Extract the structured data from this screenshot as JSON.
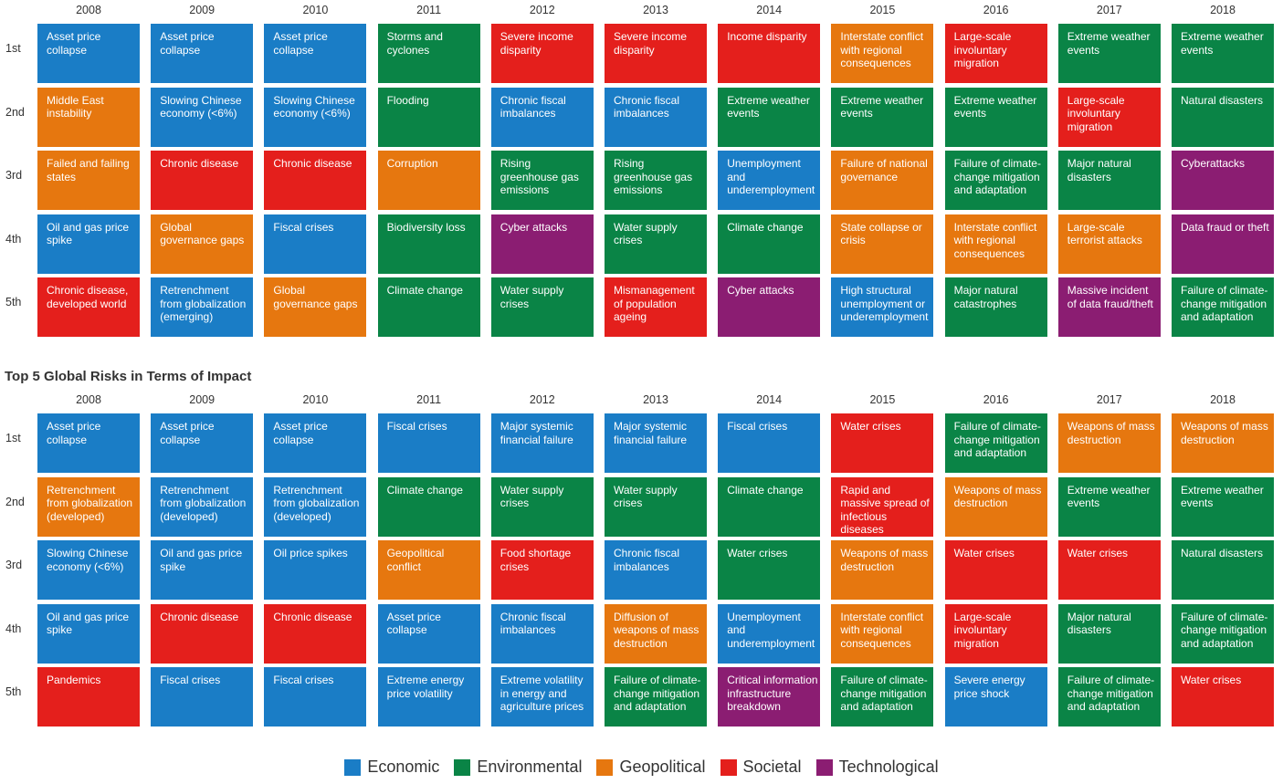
{
  "colors": {
    "Economic": "#1a7dc6",
    "Environmental": "#0a8446",
    "Geopolitical": "#e6770f",
    "Societal": "#e41f1c",
    "Technological": "#8b1d72"
  },
  "years": [
    "2008",
    "2009",
    "2010",
    "2011",
    "2012",
    "2013",
    "2014",
    "2015",
    "2016",
    "2017",
    "2018"
  ],
  "ranks": [
    "1st",
    "2nd",
    "3rd",
    "4th",
    "5th"
  ],
  "likelihood": {
    "cells": [
      [
        {
          "text": "Asset price collapse",
          "cat": "Economic"
        },
        {
          "text": "Middle East instability",
          "cat": "Geopolitical"
        },
        {
          "text": "Failed and failing states",
          "cat": "Geopolitical"
        },
        {
          "text": "Oil and gas price spike",
          "cat": "Economic"
        },
        {
          "text": "Chronic disease, developed world",
          "cat": "Societal"
        }
      ],
      [
        {
          "text": "Asset price collapse",
          "cat": "Economic"
        },
        {
          "text": "Slowing Chinese economy (<6%)",
          "cat": "Economic"
        },
        {
          "text": "Chronic disease",
          "cat": "Societal"
        },
        {
          "text": "Global governance gaps",
          "cat": "Geopolitical"
        },
        {
          "text": "Retrenchment from globalization (emerging)",
          "cat": "Economic"
        }
      ],
      [
        {
          "text": "Asset price collapse",
          "cat": "Economic"
        },
        {
          "text": "Slowing Chinese economy (<6%)",
          "cat": "Economic"
        },
        {
          "text": "Chronic disease",
          "cat": "Societal"
        },
        {
          "text": "Fiscal crises",
          "cat": "Economic"
        },
        {
          "text": "Global governance gaps",
          "cat": "Geopolitical"
        }
      ],
      [
        {
          "text": "Storms and cyclones",
          "cat": "Environmental"
        },
        {
          "text": "Flooding",
          "cat": "Environmental"
        },
        {
          "text": "Corruption",
          "cat": "Geopolitical"
        },
        {
          "text": "Biodiversity loss",
          "cat": "Environmental"
        },
        {
          "text": "Climate change",
          "cat": "Environmental"
        }
      ],
      [
        {
          "text": "Severe income disparity",
          "cat": "Societal"
        },
        {
          "text": "Chronic fiscal imbalances",
          "cat": "Economic"
        },
        {
          "text": "Rising greenhouse gas emissions",
          "cat": "Environmental"
        },
        {
          "text": "Cyber attacks",
          "cat": "Technological"
        },
        {
          "text": "Water supply crises",
          "cat": "Environmental"
        }
      ],
      [
        {
          "text": "Severe income disparity",
          "cat": "Societal"
        },
        {
          "text": "Chronic fiscal imbalances",
          "cat": "Economic"
        },
        {
          "text": "Rising greenhouse gas emissions",
          "cat": "Environmental"
        },
        {
          "text": "Water supply crises",
          "cat": "Environmental"
        },
        {
          "text": "Mismanagement of population ageing",
          "cat": "Societal"
        }
      ],
      [
        {
          "text": "Income disparity",
          "cat": "Societal"
        },
        {
          "text": "Extreme weather events",
          "cat": "Environmental"
        },
        {
          "text": "Unemployment and underemployment",
          "cat": "Economic"
        },
        {
          "text": "Climate change",
          "cat": "Environmental"
        },
        {
          "text": "Cyber attacks",
          "cat": "Technological"
        }
      ],
      [
        {
          "text": "Interstate conflict with regional consequences",
          "cat": "Geopolitical"
        },
        {
          "text": "Extreme weather events",
          "cat": "Environmental"
        },
        {
          "text": "Failure of national governance",
          "cat": "Geopolitical"
        },
        {
          "text": "State collapse or crisis",
          "cat": "Geopolitical"
        },
        {
          "text": "High structural unemployment or underemployment",
          "cat": "Economic"
        }
      ],
      [
        {
          "text": "Large-scale involuntary migration",
          "cat": "Societal"
        },
        {
          "text": "Extreme weather events",
          "cat": "Environmental"
        },
        {
          "text": "Failure of climate-change mitigation and adaptation",
          "cat": "Environmental"
        },
        {
          "text": "Interstate conflict with regional consequences",
          "cat": "Geopolitical"
        },
        {
          "text": "Major natural catastrophes",
          "cat": "Environmental"
        }
      ],
      [
        {
          "text": "Extreme weather events",
          "cat": "Environmental"
        },
        {
          "text": "Large-scale involuntary migration",
          "cat": "Societal"
        },
        {
          "text": "Major natural disasters",
          "cat": "Environmental"
        },
        {
          "text": "Large-scale terrorist attacks",
          "cat": "Geopolitical"
        },
        {
          "text": "Massive incident of data fraud/theft",
          "cat": "Technological"
        }
      ],
      [
        {
          "text": "Extreme weather events",
          "cat": "Environmental"
        },
        {
          "text": "Natural disasters",
          "cat": "Environmental"
        },
        {
          "text": "Cyberattacks",
          "cat": "Technological"
        },
        {
          "text": "Data fraud or theft",
          "cat": "Technological"
        },
        {
          "text": "Failure of climate-change mitigation and adaptation",
          "cat": "Environmental"
        }
      ]
    ]
  },
  "impact": {
    "title": "Top 5 Global Risks in Terms of Impact",
    "cells": [
      [
        {
          "text": "Asset price collapse",
          "cat": "Economic"
        },
        {
          "text": "Retrenchment from globalization (developed)",
          "cat": "Geopolitical"
        },
        {
          "text": "Slowing Chinese economy (<6%)",
          "cat": "Economic"
        },
        {
          "text": "Oil and gas price spike",
          "cat": "Economic"
        },
        {
          "text": "Pandemics",
          "cat": "Societal"
        }
      ],
      [
        {
          "text": "Asset price collapse",
          "cat": "Economic"
        },
        {
          "text": "Retrenchment from globalization (developed)",
          "cat": "Economic"
        },
        {
          "text": "Oil and gas price spike",
          "cat": "Economic"
        },
        {
          "text": "Chronic disease",
          "cat": "Societal"
        },
        {
          "text": "Fiscal crises",
          "cat": "Economic"
        }
      ],
      [
        {
          "text": "Asset price collapse",
          "cat": "Economic"
        },
        {
          "text": "Retrenchment from globalization (developed)",
          "cat": "Economic"
        },
        {
          "text": "Oil price spikes",
          "cat": "Economic"
        },
        {
          "text": "Chronic disease",
          "cat": "Societal"
        },
        {
          "text": "Fiscal crises",
          "cat": "Economic"
        }
      ],
      [
        {
          "text": "Fiscal crises",
          "cat": "Economic"
        },
        {
          "text": "Climate change",
          "cat": "Environmental"
        },
        {
          "text": "Geopolitical conflict",
          "cat": "Geopolitical"
        },
        {
          "text": "Asset price collapse",
          "cat": "Economic"
        },
        {
          "text": "Extreme energy price volatility",
          "cat": "Economic"
        }
      ],
      [
        {
          "text": "Major systemic financial failure",
          "cat": "Economic"
        },
        {
          "text": "Water supply crises",
          "cat": "Environmental"
        },
        {
          "text": "Food shortage crises",
          "cat": "Societal"
        },
        {
          "text": "Chronic fiscal imbalances",
          "cat": "Economic"
        },
        {
          "text": "Extreme volatility in energy and agriculture prices",
          "cat": "Economic"
        }
      ],
      [
        {
          "text": "Major systemic financial failure",
          "cat": "Economic"
        },
        {
          "text": "Water supply crises",
          "cat": "Environmental"
        },
        {
          "text": "Chronic fiscal imbalances",
          "cat": "Economic"
        },
        {
          "text": "Diffusion of weapons of mass destruction",
          "cat": "Geopolitical"
        },
        {
          "text": "Failure of climate-change mitigation and adaptation",
          "cat": "Environmental"
        }
      ],
      [
        {
          "text": "Fiscal crises",
          "cat": "Economic"
        },
        {
          "text": "Climate change",
          "cat": "Environmental"
        },
        {
          "text": "Water crises",
          "cat": "Environmental"
        },
        {
          "text": "Unemployment and underemployment",
          "cat": "Economic"
        },
        {
          "text": "Critical information infrastructure breakdown",
          "cat": "Technological"
        }
      ],
      [
        {
          "text": "Water crises",
          "cat": "Societal"
        },
        {
          "text": "Rapid and massive spread of infectious diseases",
          "cat": "Societal"
        },
        {
          "text": "Weapons of mass destruction",
          "cat": "Geopolitical"
        },
        {
          "text": "Interstate conflict with regional consequences",
          "cat": "Geopolitical"
        },
        {
          "text": "Failure of climate-change mitigation and adaptation",
          "cat": "Environmental"
        }
      ],
      [
        {
          "text": "Failure of climate-change mitigation and adaptation",
          "cat": "Environmental"
        },
        {
          "text": "Weapons of mass destruction",
          "cat": "Geopolitical"
        },
        {
          "text": "Water crises",
          "cat": "Societal"
        },
        {
          "text": "Large-scale involuntary migration",
          "cat": "Societal"
        },
        {
          "text": "Severe energy price shock",
          "cat": "Economic"
        }
      ],
      [
        {
          "text": "Weapons of mass destruction",
          "cat": "Geopolitical"
        },
        {
          "text": "Extreme weather events",
          "cat": "Environmental"
        },
        {
          "text": "Water crises",
          "cat": "Societal"
        },
        {
          "text": "Major natural disasters",
          "cat": "Environmental"
        },
        {
          "text": "Failure of climate-change mitigation and adaptation",
          "cat": "Environmental"
        }
      ],
      [
        {
          "text": "Weapons of mass destruction",
          "cat": "Geopolitical"
        },
        {
          "text": "Extreme weather events",
          "cat": "Environmental"
        },
        {
          "text": "Natural disasters",
          "cat": "Environmental"
        },
        {
          "text": "Failure of climate-change mitigation and adaptation",
          "cat": "Environmental"
        },
        {
          "text": "Water crises",
          "cat": "Societal"
        }
      ]
    ]
  },
  "legend": [
    {
      "label": "Economic",
      "cat": "Economic"
    },
    {
      "label": "Environmental",
      "cat": "Environmental"
    },
    {
      "label": "Geopolitical",
      "cat": "Geopolitical"
    },
    {
      "label": "Societal",
      "cat": "Societal"
    },
    {
      "label": "Technological",
      "cat": "Technological"
    }
  ]
}
